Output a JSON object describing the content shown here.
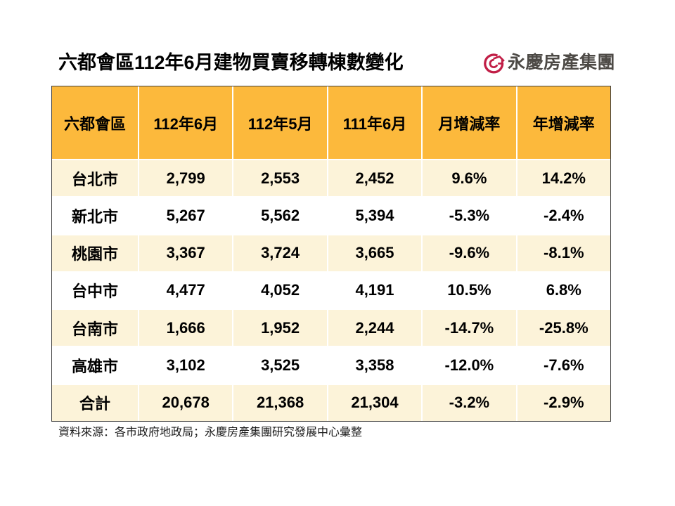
{
  "title": "六都會區112年6月建物買賣移轉棟數變化",
  "logo": {
    "text": "永慶房產集團",
    "icon": "yungching-ring-arrow-logo"
  },
  "footer": {
    "source": "資料來源：各市政府地政局；永慶房產集團研究發展中心彙整"
  },
  "colors": {
    "header_bg": "#FCB93C",
    "row_alt_bg": "#FCF3D9",
    "row_bg": "#FFFFFF",
    "table_border": "#404040",
    "grid_line": "#FFFFFF",
    "text": "#000000",
    "logo_red": "#C11E46",
    "logo_text": "#4D4A46"
  },
  "chart_data": {
    "type": "table",
    "title": "六都會區112年6月建物買賣移轉棟數變化",
    "columns": [
      "六都會區",
      "112年6月",
      "112年5月",
      "111年6月",
      "月增減率",
      "年增減率"
    ],
    "rows": [
      {
        "cells": [
          "台北市",
          "2,799",
          "2,553",
          "2,452",
          "9.6%",
          "14.2%"
        ]
      },
      {
        "cells": [
          "新北市",
          "5,267",
          "5,562",
          "5,394",
          "-5.3%",
          "-2.4%"
        ]
      },
      {
        "cells": [
          "桃園市",
          "3,367",
          "3,724",
          "3,665",
          "-9.6%",
          "-8.1%"
        ]
      },
      {
        "cells": [
          "台中市",
          "4,477",
          "4,052",
          "4,191",
          "10.5%",
          "6.8%"
        ]
      },
      {
        "cells": [
          "台南市",
          "1,666",
          "1,952",
          "2,244",
          "-14.7%",
          "-25.8%"
        ]
      },
      {
        "cells": [
          "高雄市",
          "3,102",
          "3,525",
          "3,358",
          "-12.0%",
          "-7.6%"
        ]
      },
      {
        "cells": [
          "合計",
          "20,678",
          "21,368",
          "21,304",
          "-3.2%",
          "-2.9%"
        ]
      }
    ],
    "source": "資料來源：各市政府地政局；永慶房產集團研究發展中心彙整"
  }
}
